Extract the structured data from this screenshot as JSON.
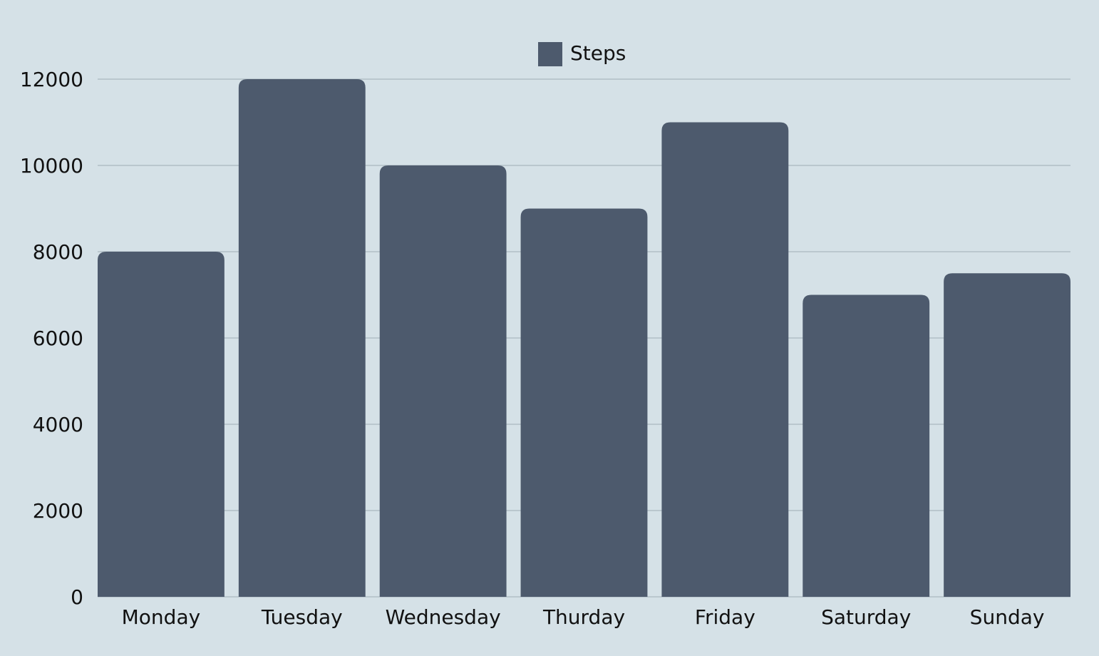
{
  "chart_data": {
    "type": "bar",
    "categories": [
      "Monday",
      "Tuesday",
      "Wednesday",
      "Thurday",
      "Friday",
      "Saturday",
      "Sunday"
    ],
    "series": [
      {
        "name": "Steps",
        "values": [
          8000,
          12000,
          10000,
          9000,
          11000,
          7000,
          7500
        ],
        "color": "#4d5a6d"
      }
    ],
    "yticks": [
      "0",
      "2000",
      "4000",
      "6000",
      "8000",
      "10000",
      "12000"
    ],
    "ylim": [
      0,
      12000
    ],
    "grid": true,
    "legend_position": "top-center",
    "background_color": "#d5e1e7",
    "grid_color": "#aab8c0"
  }
}
